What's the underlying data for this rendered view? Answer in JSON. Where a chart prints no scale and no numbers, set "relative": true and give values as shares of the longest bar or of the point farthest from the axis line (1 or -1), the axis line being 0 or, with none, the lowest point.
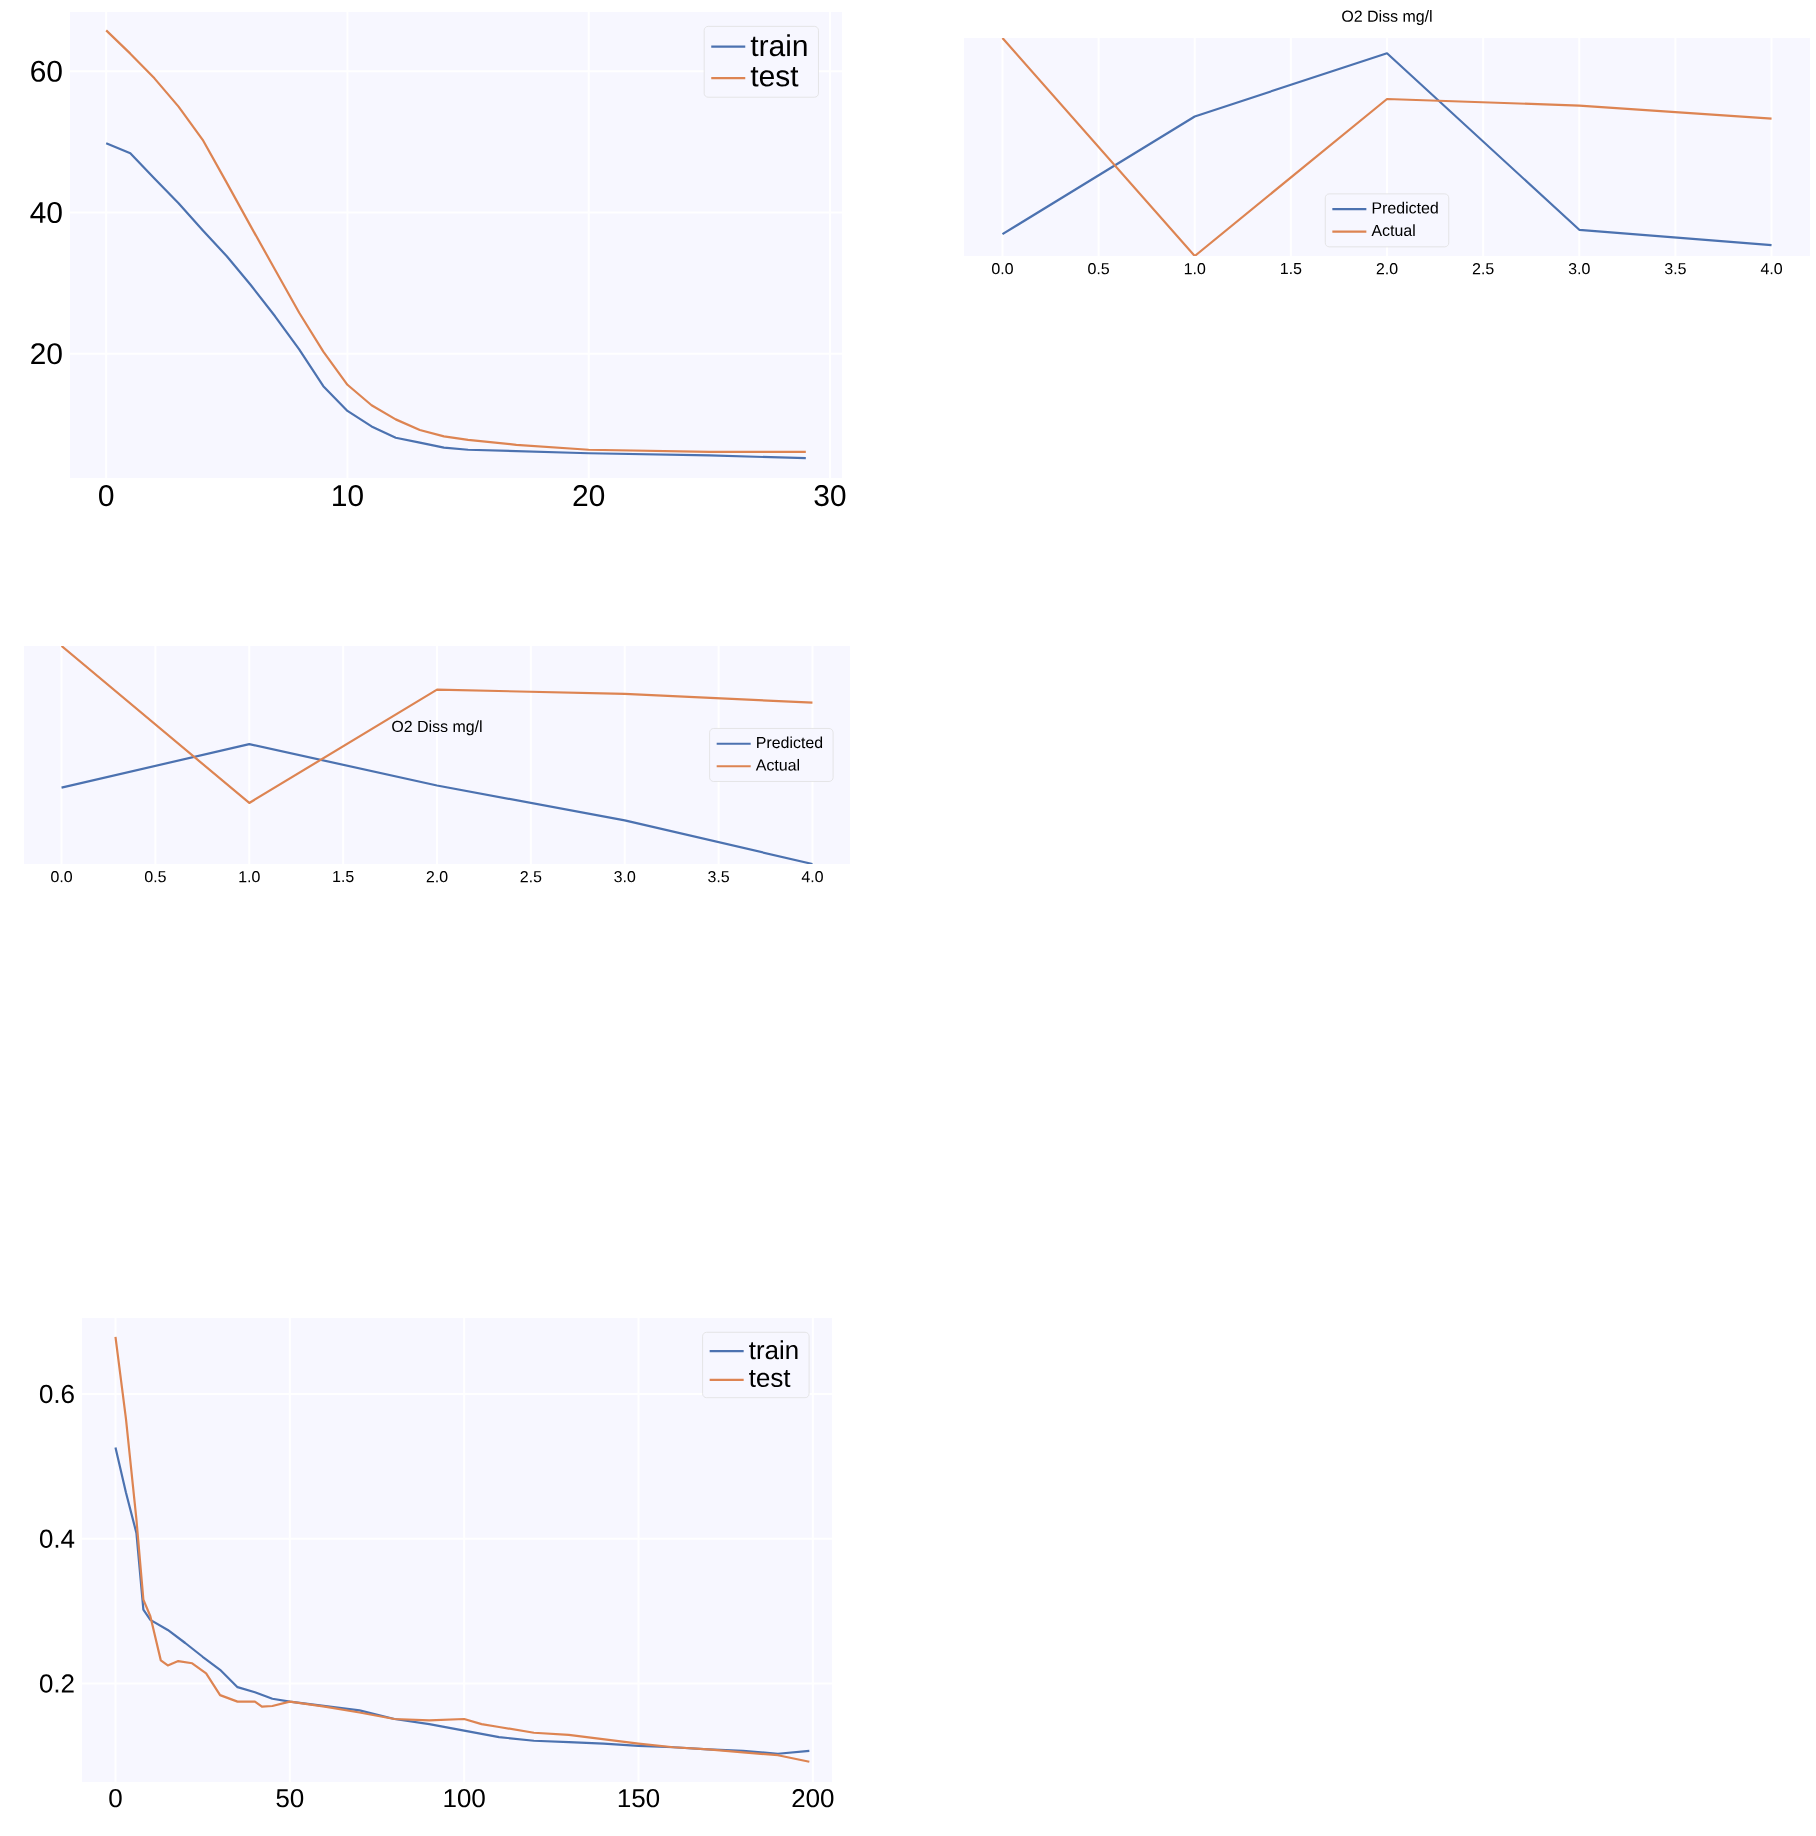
{
  "chart_data": [
    {
      "type": "line",
      "xlim": [
        -1.5,
        30.5
      ],
      "ylim": [
        2.4,
        68.4
      ],
      "xticks": [
        0,
        10,
        20,
        30
      ],
      "yticks": [
        20,
        40,
        60
      ],
      "grid": true,
      "legend": "top right",
      "series": [
        {
          "name": "train",
          "color": "#4c72b0",
          "x": [
            0,
            1,
            2,
            3,
            4,
            5,
            6,
            7,
            8,
            9,
            10,
            11,
            12,
            13,
            14,
            15,
            20,
            25,
            29
          ],
          "values": [
            49.8,
            48.4,
            44.8,
            41.3,
            37.5,
            33.8,
            29.7,
            25.3,
            20.6,
            15.4,
            11.9,
            9.7,
            8.1,
            7.4,
            6.7,
            6.4,
            5.9,
            5.6,
            5.2
          ]
        },
        {
          "name": "test",
          "color": "#dd8452",
          "x": [
            0,
            1,
            2,
            3,
            4,
            5,
            6,
            7,
            8,
            9,
            10,
            11,
            12,
            13,
            14,
            15,
            17,
            20,
            25,
            29
          ],
          "values": [
            65.8,
            62.5,
            59.0,
            55.0,
            50.3,
            44.2,
            38.0,
            31.9,
            25.8,
            20.3,
            15.6,
            12.7,
            10.7,
            9.2,
            8.3,
            7.8,
            7.1,
            6.4,
            6.1,
            6.1
          ]
        }
      ]
    },
    {
      "type": "line",
      "title": "O2 Diss mg/l",
      "relative": true,
      "tick_labels": "x",
      "xlim": [
        -0.2,
        4.2
      ],
      "xticks": [
        {
          "value": 0,
          "label": "0.0"
        },
        {
          "value": 0.5,
          "label": "0.5"
        },
        {
          "value": 1,
          "label": "1.0"
        },
        {
          "value": 1.5,
          "label": "1.5"
        },
        {
          "value": 2,
          "label": "2.0"
        },
        {
          "value": 2.5,
          "label": "2.5"
        },
        {
          "value": 3,
          "label": "3.0"
        },
        {
          "value": 3.5,
          "label": "3.5"
        },
        {
          "value": 4,
          "label": "4.0"
        }
      ],
      "grid": "x",
      "legend": "bottom",
      "x": [
        0,
        1,
        2,
        3,
        4
      ],
      "series": [
        {
          "name": "Predicted",
          "color": "#4c72b0",
          "values": [
            0.1,
            0.64,
            0.93,
            0.12,
            0.05
          ]
        },
        {
          "name": "Actual",
          "color": "#dd8452",
          "values": [
            1.0,
            0.0,
            0.72,
            0.69,
            0.63
          ]
        }
      ]
    },
    {
      "type": "line",
      "title": "O2 Diss mg/l",
      "relative": true,
      "tick_labels": "x",
      "xlim": [
        -0.2,
        4.2
      ],
      "xticks": [
        {
          "value": 0,
          "label": "0.0"
        },
        {
          "value": 0.5,
          "label": "0.5"
        },
        {
          "value": 1,
          "label": "1.0"
        },
        {
          "value": 1.5,
          "label": "1.5"
        },
        {
          "value": 2,
          "label": "2.0"
        },
        {
          "value": 2.5,
          "label": "2.5"
        },
        {
          "value": 3,
          "label": "3.0"
        },
        {
          "value": 3.5,
          "label": "3.5"
        },
        {
          "value": 4,
          "label": "4.0"
        }
      ],
      "grid": "x",
      "legend": "right",
      "x": [
        0,
        1,
        2,
        3,
        4
      ],
      "series": [
        {
          "name": "Predicted",
          "color": "#4c72b0",
          "values": [
            0.35,
            0.55,
            0.36,
            0.2,
            0.0
          ]
        },
        {
          "name": "Actual",
          "color": "#dd8452",
          "values": [
            1.0,
            0.28,
            0.8,
            0.78,
            0.74
          ]
        }
      ]
    },
    {
      "type": "line",
      "xlim": [
        -9.6,
        205.5
      ],
      "ylim": [
        0.064,
        0.705
      ],
      "xticks": [
        0,
        50,
        100,
        150,
        200
      ],
      "yticks": [
        0.2,
        0.4,
        0.6
      ],
      "grid": true,
      "legend": "top right",
      "series": [
        {
          "name": "train",
          "color": "#4c72b0",
          "x": [
            0,
            3,
            6,
            8,
            10,
            15,
            20,
            25,
            30,
            35,
            40,
            45,
            50,
            60,
            70,
            80,
            90,
            100,
            110,
            120,
            130,
            140,
            150,
            160,
            170,
            180,
            190,
            199
          ],
          "values": [
            0.526,
            0.464,
            0.408,
            0.302,
            0.288,
            0.274,
            0.256,
            0.237,
            0.219,
            0.195,
            0.188,
            0.179,
            0.175,
            0.169,
            0.163,
            0.151,
            0.144,
            0.135,
            0.126,
            0.121,
            0.119,
            0.117,
            0.114,
            0.112,
            0.109,
            0.107,
            0.103,
            0.107
          ]
        },
        {
          "name": "test",
          "color": "#dd8452",
          "x": [
            0,
            3,
            6,
            8,
            10,
            13,
            15,
            18,
            22,
            26,
            30,
            35,
            40,
            42,
            45,
            50,
            60,
            70,
            80,
            90,
            100,
            105,
            110,
            120,
            130,
            140,
            150,
            160,
            170,
            180,
            190,
            199
          ],
          "values": [
            0.679,
            0.566,
            0.427,
            0.316,
            0.293,
            0.232,
            0.225,
            0.231,
            0.228,
            0.214,
            0.184,
            0.175,
            0.175,
            0.168,
            0.169,
            0.175,
            0.168,
            0.16,
            0.151,
            0.149,
            0.151,
            0.144,
            0.14,
            0.132,
            0.129,
            0.123,
            0.117,
            0.112,
            0.109,
            0.105,
            0.101,
            0.092
          ]
        }
      ]
    }
  ]
}
